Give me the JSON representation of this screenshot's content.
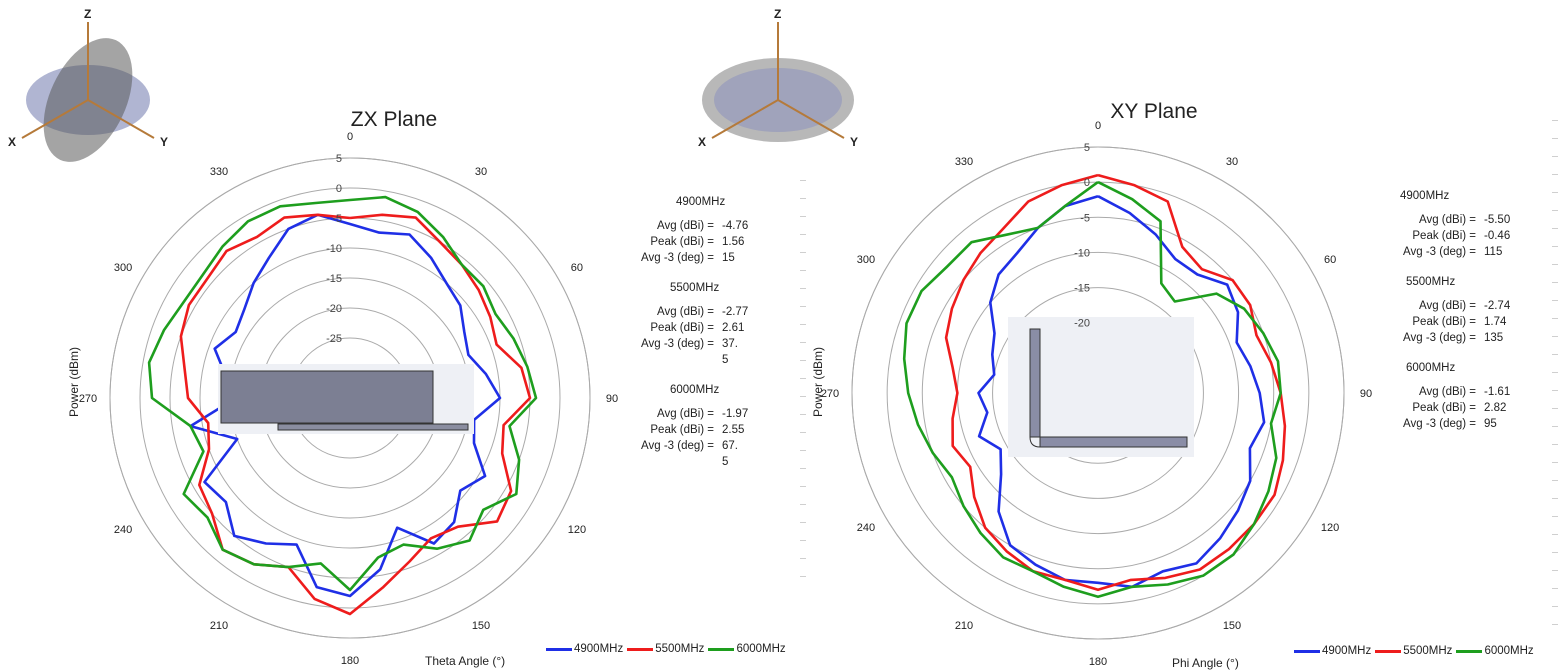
{
  "colors": {
    "4900MHz": "#1f2fe6",
    "5500MHz": "#ee1c1c",
    "6000MHz": "#1e9e1e"
  },
  "legend": [
    "4900MHz",
    "5500MHz",
    "6000MHz"
  ],
  "orientation_icons": [
    "zx-plane-orientation-icon",
    "xy-plane-orientation-icon"
  ],
  "orientation_axis_labels": [
    "Z",
    "X",
    "Y"
  ],
  "chart_data": [
    {
      "type": "polar-line",
      "title": "ZX Plane",
      "ylabel": "Power (dBm)",
      "xlabel": "Theta  Angle (°)",
      "angle_ticks": [
        "0",
        "30",
        "60",
        "90",
        "120",
        "150",
        "180",
        "210",
        "240",
        "270",
        "300",
        "330"
      ],
      "radial_ticks": [
        "5",
        "0",
        "-5",
        "-10",
        "-15",
        "-20",
        "-25"
      ],
      "rlim": [
        -35,
        5
      ],
      "grid": true,
      "legend_placement": "bottom-right",
      "angles_deg": [
        0,
        10,
        20,
        30,
        40,
        50,
        60,
        70,
        80,
        90,
        100,
        110,
        120,
        130,
        140,
        150,
        160,
        170,
        180,
        190,
        200,
        210,
        220,
        230,
        240,
        250,
        260,
        270,
        280,
        290,
        300,
        310,
        320,
        330,
        340,
        350
      ],
      "series": [
        {
          "name": "4900MHz",
          "values": [
            -6,
            -7,
            -6,
            -8,
            -10,
            -11,
            -13,
            -14,
            -12,
            -10,
            -14,
            -13,
            -9,
            -11,
            -8,
            -7,
            -12,
            -6,
            -2,
            -3,
            -9,
            -7,
            -5,
            -8,
            -7,
            -15,
            -8,
            -16,
            -14,
            -11,
            -13,
            -12,
            -10,
            -8,
            -5,
            -4
          ]
        },
        {
          "name": "5500MHz",
          "values": [
            -5,
            -4,
            -3,
            -5,
            -6,
            -7,
            -8,
            -9,
            -6,
            -5,
            -9,
            -8,
            -4,
            -3,
            -7,
            -8,
            -6,
            -3,
            1,
            -1,
            -5,
            -3,
            -2,
            -5,
            -6,
            -10,
            -11,
            -8,
            -7,
            -5,
            -4,
            -4,
            -3,
            -4,
            -3,
            -4
          ]
        },
        {
          "name": "6000MHz",
          "values": [
            -2,
            -1,
            -2,
            -4,
            -6,
            -6,
            -7,
            -6,
            -5,
            -4,
            -8,
            -5,
            -3,
            -6,
            -4,
            -6,
            -9,
            -8,
            -3,
            -7,
            -5,
            -3,
            -2,
            -4,
            -3,
            -9,
            -8,
            -2,
            -1,
            -2,
            -3,
            -3,
            -2,
            -1,
            -1,
            -2
          ]
        }
      ],
      "stats": [
        {
          "freq": "4900MHz",
          "avg": "-4.76",
          "peak": "1.56",
          "avg3": "15"
        },
        {
          "freq": "5500MHz",
          "avg": "-2.77",
          "peak": "2.61",
          "avg3": "37.\n5"
        },
        {
          "freq": "6000MHz",
          "avg": "-1.97",
          "peak": "2.55",
          "avg3": "67.\n5"
        }
      ]
    },
    {
      "type": "polar-line",
      "title": "XY Plane",
      "ylabel": "Power (dBm)",
      "xlabel": "Phi  Angle (°)",
      "angle_ticks": [
        "0",
        "30",
        "60",
        "90",
        "120",
        "150",
        "180",
        "210",
        "240",
        "270",
        "300",
        "330"
      ],
      "radial_ticks": [
        "5",
        "0",
        "-5",
        "-10",
        "-15",
        "-20"
      ],
      "rlim": [
        -30,
        5
      ],
      "grid": true,
      "legend_placement": "bottom-right",
      "angles_deg": [
        0,
        10,
        20,
        30,
        40,
        50,
        60,
        70,
        80,
        90,
        100,
        110,
        120,
        130,
        140,
        150,
        160,
        170,
        180,
        190,
        200,
        210,
        220,
        230,
        240,
        250,
        260,
        270,
        280,
        290,
        300,
        310,
        320,
        330,
        340,
        350
      ],
      "series": [
        {
          "name": "4900MHz",
          "values": [
            -2,
            -4,
            -6,
            -8,
            -8,
            -6,
            -7,
            -9,
            -8,
            -7,
            -6,
            -7,
            -5,
            -4,
            -3,
            -2,
            -3,
            -2,
            -3,
            -3,
            -4,
            -5,
            -8,
            -12,
            -14,
            -12,
            -14,
            -13,
            -15,
            -14,
            -13,
            -10,
            -8,
            -7,
            -5,
            -3
          ]
        },
        {
          "name": "5500MHz",
          "values": [
            1,
            0,
            -1,
            -6,
            -7,
            -5,
            -5,
            -6,
            -5,
            -4,
            -3,
            -2,
            -1,
            -1,
            -1,
            -1,
            -2,
            -3,
            -2,
            -3,
            -3,
            -4,
            -5,
            -7,
            -9,
            -8,
            -9,
            -10,
            -9,
            -7,
            -6,
            -5,
            -4,
            -3,
            -1,
            0
          ]
        },
        {
          "name": "6000MHz",
          "values": [
            0,
            -2,
            -4,
            -12,
            -13,
            -8,
            -6,
            -5,
            -4,
            -4,
            -5,
            -3,
            -2,
            -1,
            0,
            0,
            -1,
            -2,
            -1,
            -2,
            -3,
            -3,
            -4,
            -5,
            -6,
            -5,
            -4,
            -3,
            -2,
            -1,
            -1,
            -2,
            -2,
            -4,
            -5,
            -3
          ]
        }
      ],
      "stats": [
        {
          "freq": "4900MHz",
          "avg": "-5.50",
          "peak": "-0.46",
          "avg3": "115"
        },
        {
          "freq": "5500MHz",
          "avg": "-2.74",
          "peak": "1.74",
          "avg3": "135"
        },
        {
          "freq": "6000MHz",
          "avg": "-1.61",
          "peak": "2.82",
          "avg3": "95"
        }
      ]
    }
  ],
  "stat_labels": {
    "avg": "Avg (dBi) =",
    "peak": "Peak (dBi) =",
    "avg3": "Avg -3 (deg) ="
  }
}
